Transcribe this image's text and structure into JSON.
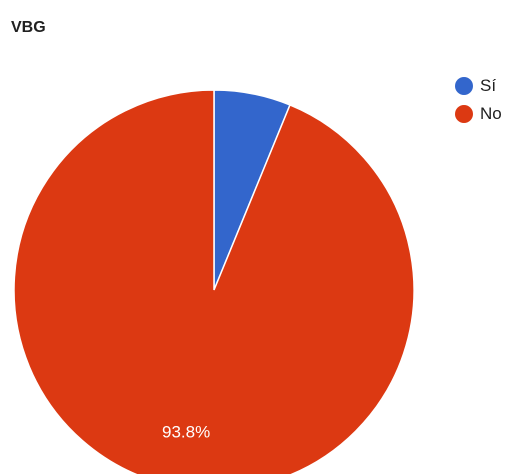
{
  "chart_data": {
    "type": "pie",
    "title": "VBG",
    "slices": [
      {
        "label": "Sí",
        "value": 6.2,
        "color": "#3366cc"
      },
      {
        "label": "No",
        "value": 93.8,
        "color": "#dc3912"
      }
    ],
    "data_labels": [
      "",
      "93.8%"
    ],
    "legend_position": "right"
  }
}
